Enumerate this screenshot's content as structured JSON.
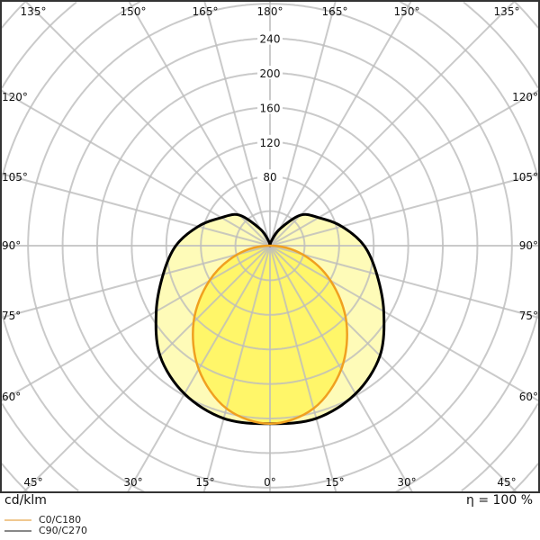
{
  "chart_data": {
    "type": "polar",
    "unit_label": "cd/klm",
    "efficiency_label": "η = 100 %",
    "radial_ticks": [
      80,
      120,
      160,
      200,
      240
    ],
    "radial_grid_step": 40,
    "angle_grid_step_deg": 15,
    "angle_tick_labels": {
      "top": [
        "135°",
        "150°",
        "165°",
        "180°",
        "165°",
        "150°",
        "135°"
      ],
      "left": [
        "120°",
        "105°",
        "90°",
        "75°",
        "60°"
      ],
      "right": [
        "120°",
        "105°",
        "90°",
        "75°",
        "60°"
      ],
      "bottom": [
        "45°",
        "30°",
        "15°",
        "0°",
        "15°",
        "30°",
        "45°"
      ]
    },
    "grid": true,
    "legend_placement": "bottom-left",
    "series": [
      {
        "name": "C90/C270",
        "color": "#000000",
        "fill": "#fdf9a0",
        "legend_color": "#888888",
        "angles": [
          0,
          15,
          30,
          45,
          60,
          75,
          90,
          105,
          120,
          135,
          150,
          165,
          180
        ],
        "values": [
          206,
          207,
          198,
          180,
          152,
          128,
          109,
          86,
          65,
          50,
          22,
          5,
          0
        ]
      },
      {
        "name": "C0/C180",
        "color": "#f0a020",
        "fill": "#fff45a",
        "legend_color": "#f0c890",
        "angles": [
          0,
          15,
          30,
          45,
          60,
          75,
          90
        ],
        "values": [
          206,
          195,
          165,
          125,
          81,
          39,
          0
        ]
      }
    ]
  }
}
